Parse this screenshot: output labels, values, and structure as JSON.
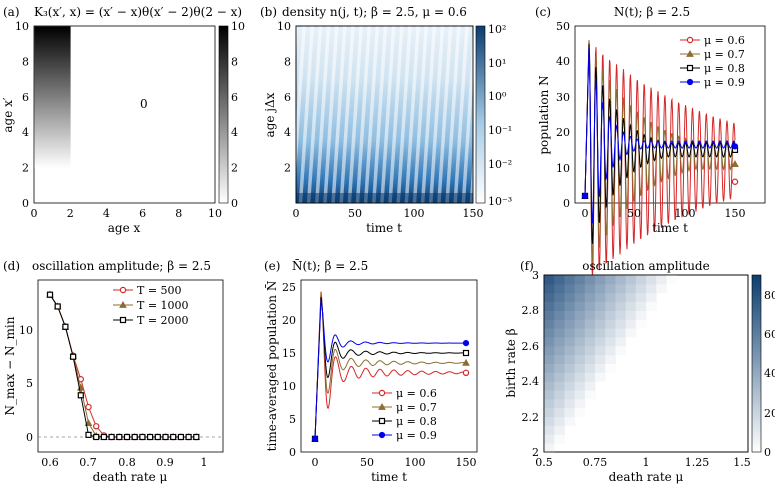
{
  "figure": {
    "panel_letters": [
      "(a)",
      "(b)",
      "(c)",
      "(d)",
      "(e)",
      "(f)"
    ]
  },
  "chart_data": [
    {
      "type": "heatmap",
      "id": "a",
      "title": "K₃(x′, x) = (x′ − x)θ(x′ − 2)θ(2 − x)",
      "xlabel": "age x",
      "ylabel": "age x′",
      "xlim": [
        0,
        10
      ],
      "ylim": [
        0,
        10
      ],
      "xticks": [
        "0",
        "2",
        "4",
        "6",
        "8",
        "10"
      ],
      "yticks": [
        "0",
        "2",
        "4",
        "6",
        "8",
        "10"
      ],
      "annotation": "0",
      "colorbar": {
        "min": 0,
        "max": 10,
        "ticks": [
          "0",
          "2",
          "4",
          "6",
          "8",
          "10"
        ]
      },
      "region": {
        "x": [
          0,
          2
        ],
        "y": [
          2,
          10
        ],
        "value": "x′ − x"
      }
    },
    {
      "type": "heatmap",
      "id": "b",
      "title": "density n(j, t); β = 2.5, μ = 0.6",
      "xlabel": "time t",
      "ylabel": "age jΔx",
      "xlim": [
        0,
        150
      ],
      "ylim": [
        0,
        10
      ],
      "xticks": [
        "0",
        "50",
        "100",
        "150"
      ],
      "yticks": [
        "2",
        "4",
        "6",
        "8",
        "10"
      ],
      "colorbar": {
        "scale": "log",
        "ticks": [
          "10²",
          "10¹",
          "10⁰",
          "10⁻¹",
          "10⁻²",
          "10⁻³"
        ]
      },
      "stripe_period_t": 6.9
    },
    {
      "type": "line",
      "id": "c",
      "title": "N(t); β = 2.5",
      "xlabel": "time t",
      "ylabel": "population N",
      "xlim": [
        0,
        150
      ],
      "ylim": [
        0,
        50
      ],
      "xticks": [
        "0",
        "50",
        "100",
        "150"
      ],
      "yticks": [
        "0",
        "10",
        "20",
        "30",
        "40",
        "50"
      ],
      "legend": [
        "μ = 0.6",
        "μ = 0.7",
        "μ = 0.8",
        "μ = 0.9"
      ],
      "series": [
        {
          "name": "μ = 0.6",
          "color": "#d62728",
          "marker": "circle",
          "start": 2,
          "peak": 46,
          "period": 6.9,
          "mean": 12,
          "decay": 0.008,
          "end": 6
        },
        {
          "name": "μ = 0.7",
          "color": "#8c6d31",
          "marker": "triangle",
          "start": 2,
          "peak": 46,
          "period": 6.9,
          "mean": 13.5,
          "decay": 0.02,
          "end": 11
        },
        {
          "name": "μ = 0.8",
          "color": "#000000",
          "marker": "square",
          "start": 2,
          "peak": 45,
          "period": 6.9,
          "mean": 15,
          "decay": 0.035,
          "end": 15
        },
        {
          "name": "μ = 0.9",
          "color": "#0000ee",
          "marker": "dot",
          "start": 2,
          "peak": 44,
          "period": 6.9,
          "mean": 16.5,
          "decay": 0.06,
          "end": 16
        }
      ]
    },
    {
      "type": "line",
      "id": "d",
      "title": "oscillation amplitude; β = 2.5",
      "xlabel": "death rate μ",
      "ylabel": "N_max − N_min",
      "xlim": [
        0.55,
        1.02
      ],
      "ylim": [
        -2,
        14
      ],
      "xticks": [
        "0.6",
        "0.7",
        "0.8",
        "0.9",
        "1"
      ],
      "yticks": [
        "0",
        "5",
        "10"
      ],
      "legend": [
        "T = 500",
        "T = 1000",
        "T = 2000"
      ],
      "x": [
        0.6,
        0.62,
        0.64,
        0.66,
        0.68,
        0.7,
        0.72,
        0.74,
        0.76,
        0.78,
        0.8,
        0.82,
        0.84,
        0.86,
        0.88,
        0.9,
        0.92,
        0.94,
        0.96,
        0.98
      ],
      "series": [
        {
          "name": "T = 500",
          "color": "#d62728",
          "marker": "circle",
          "values": [
            13.3,
            12.2,
            10.3,
            7.6,
            5.4,
            2.8,
            1.0,
            0.15,
            0,
            0,
            0,
            0,
            0,
            0,
            0,
            0,
            0,
            0,
            0,
            0
          ]
        },
        {
          "name": "T = 1000",
          "color": "#8c6d31",
          "marker": "triangle",
          "values": [
            13.3,
            12.2,
            10.3,
            7.6,
            4.6,
            1.3,
            0.1,
            0,
            0,
            0,
            0,
            0,
            0,
            0,
            0,
            0,
            0,
            0,
            0,
            0
          ]
        },
        {
          "name": "T = 2000",
          "color": "#000000",
          "marker": "square",
          "values": [
            13.3,
            12.2,
            10.3,
            7.5,
            3.9,
            0.2,
            0,
            0,
            0,
            0,
            0,
            0,
            0,
            0,
            0,
            0,
            0,
            0,
            0,
            0
          ]
        }
      ],
      "dashed_zero_line": true
    },
    {
      "type": "line",
      "id": "e",
      "title": "N̄(t); β = 2.5",
      "xlabel": "time t",
      "ylabel": "time-averaged population N̄",
      "xlim": [
        -10,
        160
      ],
      "ylim": [
        0,
        26
      ],
      "xticks": [
        "0",
        "50",
        "100",
        "150"
      ],
      "yticks": [
        "0",
        "5",
        "10",
        "15",
        "20",
        "25"
      ],
      "legend": [
        "μ = 0.6",
        "μ = 0.7",
        "μ = 0.8",
        "μ = 0.9"
      ],
      "series": [
        {
          "name": "μ = 0.6",
          "color": "#d62728",
          "marker": "circle",
          "start": 2,
          "peak": 24.3,
          "final": 12,
          "amp": 2.6,
          "decay": 0.018
        },
        {
          "name": "μ = 0.7",
          "color": "#8c6d31",
          "marker": "triangle",
          "start": 2,
          "peak": 24.0,
          "final": 13.5,
          "amp": 2.0,
          "decay": 0.022
        },
        {
          "name": "μ = 0.8",
          "color": "#000000",
          "marker": "square",
          "start": 2,
          "peak": 23.5,
          "final": 15,
          "amp": 1.6,
          "decay": 0.028
        },
        {
          "name": "μ = 0.9",
          "color": "#0000ee",
          "marker": "dot",
          "start": 2,
          "peak": 23.0,
          "final": 16.5,
          "amp": 1.3,
          "decay": 0.035
        }
      ]
    },
    {
      "type": "heatmap",
      "id": "f",
      "title": "oscillation amplitude",
      "xlabel": "death rate μ",
      "ylabel": "birth rate β",
      "xlim": [
        0.5,
        1.5
      ],
      "ylim": [
        2,
        3
      ],
      "xticks": [
        "0.5",
        "0.75",
        "1",
        "1.25",
        "1.5"
      ],
      "yticks": [
        "2",
        "2.2",
        "2.4",
        "2.6",
        "2.8",
        "3"
      ],
      "colorbar": {
        "min": 0,
        "max": 90,
        "ticks": [
          "0",
          "20",
          "40",
          "60",
          "80"
        ]
      },
      "cell_size": {
        "mu": 0.05,
        "beta": 0.05
      },
      "boundary": "mu_c ≈ 0.6·β − 0.65; amplitude ≈ 125·(mu_c − μ) for μ < mu_c"
    }
  ]
}
